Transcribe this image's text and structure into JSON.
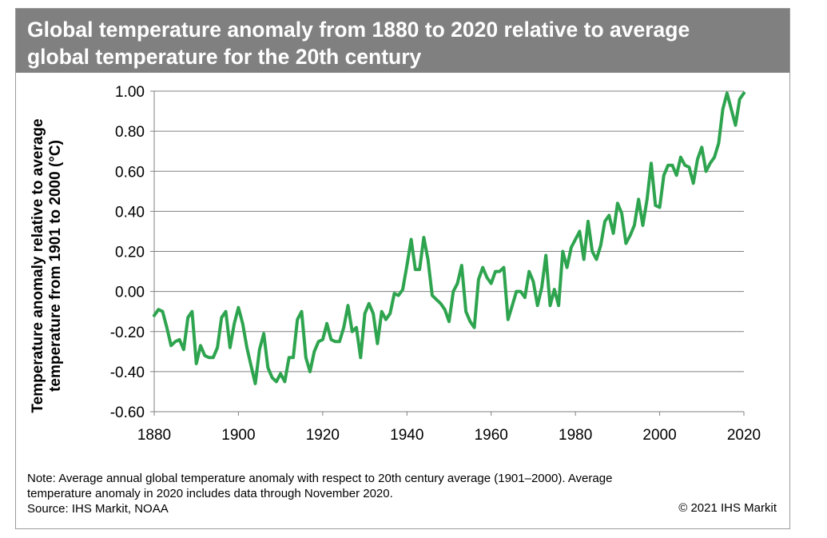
{
  "header": {
    "title_line1": "Global temperature anomaly from 1880 to 2020 relative to average",
    "title_line2": "global temperature for the 20th century"
  },
  "footer": {
    "note_line1": "Note: Average annual global temperature anomaly with respect to 20th century average (1901–2000). Average",
    "note_line2": "temperature anomaly in 2020 includes data through November 2020.",
    "source": "Source: IHS Markit, NOAA",
    "copyright": "© 2021 IHS Markit"
  },
  "colors": {
    "line": "#2ea44f",
    "grid": "#808080",
    "title_bg": "#808080"
  },
  "chart_data": {
    "type": "line",
    "title": "Global temperature anomaly from 1880 to 2020 relative to average global temperature for the 20th century",
    "xlabel": "",
    "ylabel": "Temperature anomaly relative to average temperature from 1901 to 2000 (°C)",
    "ylabel_line1": "Temperature anomaly relative to average",
    "ylabel_line2": "temperature from 1901 to 2000 (°C)",
    "xlim": [
      1880,
      2020
    ],
    "ylim": [
      -0.6,
      1.0
    ],
    "x_ticks": [
      1880,
      1900,
      1920,
      1940,
      1960,
      1980,
      2000,
      2020
    ],
    "x_tick_labels": [
      "1880",
      "1900",
      "1920",
      "1940",
      "1960",
      "1980",
      "2000",
      "2020"
    ],
    "y_ticks": [
      -0.6,
      -0.4,
      -0.2,
      0.0,
      0.2,
      0.4,
      0.6,
      0.8,
      1.0
    ],
    "y_tick_labels": [
      "-0.60",
      "-0.40",
      "-0.20",
      "0.00",
      "0.20",
      "0.40",
      "0.60",
      "0.80",
      "1.00"
    ],
    "grid": true,
    "legend": "none",
    "series": [
      {
        "x": [
          1880,
          1881,
          1882,
          1883,
          1884,
          1885,
          1886,
          1887,
          1888,
          1889,
          1890,
          1891,
          1892,
          1893,
          1894,
          1895,
          1896,
          1897,
          1898,
          1899,
          1900,
          1901,
          1902,
          1903,
          1904,
          1905,
          1906,
          1907,
          1908,
          1909,
          1910,
          1911,
          1912,
          1913,
          1914,
          1915,
          1916,
          1917,
          1918,
          1919,
          1920,
          1921,
          1922,
          1923,
          1924,
          1925,
          1926,
          1927,
          1928,
          1929,
          1930,
          1931,
          1932,
          1933,
          1934,
          1935,
          1936,
          1937,
          1938,
          1939,
          1940,
          1941,
          1942,
          1943,
          1944,
          1945,
          1946,
          1947,
          1948,
          1949,
          1950,
          1951,
          1952,
          1953,
          1954,
          1955,
          1956,
          1957,
          1958,
          1959,
          1960,
          1961,
          1962,
          1963,
          1964,
          1965,
          1966,
          1967,
          1968,
          1969,
          1970,
          1971,
          1972,
          1973,
          1974,
          1975,
          1976,
          1977,
          1978,
          1979,
          1980,
          1981,
          1982,
          1983,
          1984,
          1985,
          1986,
          1987,
          1988,
          1989,
          1990,
          1991,
          1992,
          1993,
          1994,
          1995,
          1996,
          1997,
          1998,
          1999,
          2000,
          2001,
          2002,
          2003,
          2004,
          2005,
          2006,
          2007,
          2008,
          2009,
          2010,
          2011,
          2012,
          2013,
          2014,
          2015,
          2016,
          2017,
          2018,
          2019,
          2020
        ],
        "y": [
          -0.12,
          -0.09,
          -0.1,
          -0.18,
          -0.27,
          -0.25,
          -0.24,
          -0.29,
          -0.13,
          -0.1,
          -0.36,
          -0.27,
          -0.32,
          -0.33,
          -0.33,
          -0.28,
          -0.13,
          -0.1,
          -0.28,
          -0.16,
          -0.08,
          -0.16,
          -0.28,
          -0.37,
          -0.46,
          -0.29,
          -0.21,
          -0.38,
          -0.43,
          -0.45,
          -0.41,
          -0.45,
          -0.33,
          -0.33,
          -0.14,
          -0.1,
          -0.33,
          -0.4,
          -0.3,
          -0.25,
          -0.24,
          -0.16,
          -0.24,
          -0.25,
          -0.25,
          -0.18,
          -0.07,
          -0.2,
          -0.18,
          -0.33,
          -0.11,
          -0.06,
          -0.11,
          -0.26,
          -0.1,
          -0.14,
          -0.11,
          -0.01,
          -0.02,
          0.01,
          0.13,
          0.26,
          0.11,
          0.11,
          0.27,
          0.16,
          -0.02,
          -0.04,
          -0.06,
          -0.09,
          -0.15,
          0.0,
          0.04,
          0.13,
          -0.1,
          -0.15,
          -0.18,
          0.06,
          0.12,
          0.07,
          0.04,
          0.1,
          0.1,
          0.12,
          -0.14,
          -0.07,
          0.0,
          0.0,
          -0.03,
          0.1,
          0.05,
          -0.07,
          0.02,
          0.18,
          -0.07,
          0.01,
          -0.07,
          0.2,
          0.12,
          0.22,
          0.26,
          0.3,
          0.16,
          0.35,
          0.2,
          0.16,
          0.23,
          0.35,
          0.38,
          0.29,
          0.44,
          0.39,
          0.24,
          0.28,
          0.33,
          0.46,
          0.33,
          0.46,
          0.64,
          0.43,
          0.42,
          0.58,
          0.63,
          0.63,
          0.58,
          0.67,
          0.63,
          0.62,
          0.54,
          0.66,
          0.72,
          0.6,
          0.64,
          0.67,
          0.74,
          0.91,
          0.99,
          0.91,
          0.83,
          0.96,
          0.99
        ]
      }
    ]
  }
}
